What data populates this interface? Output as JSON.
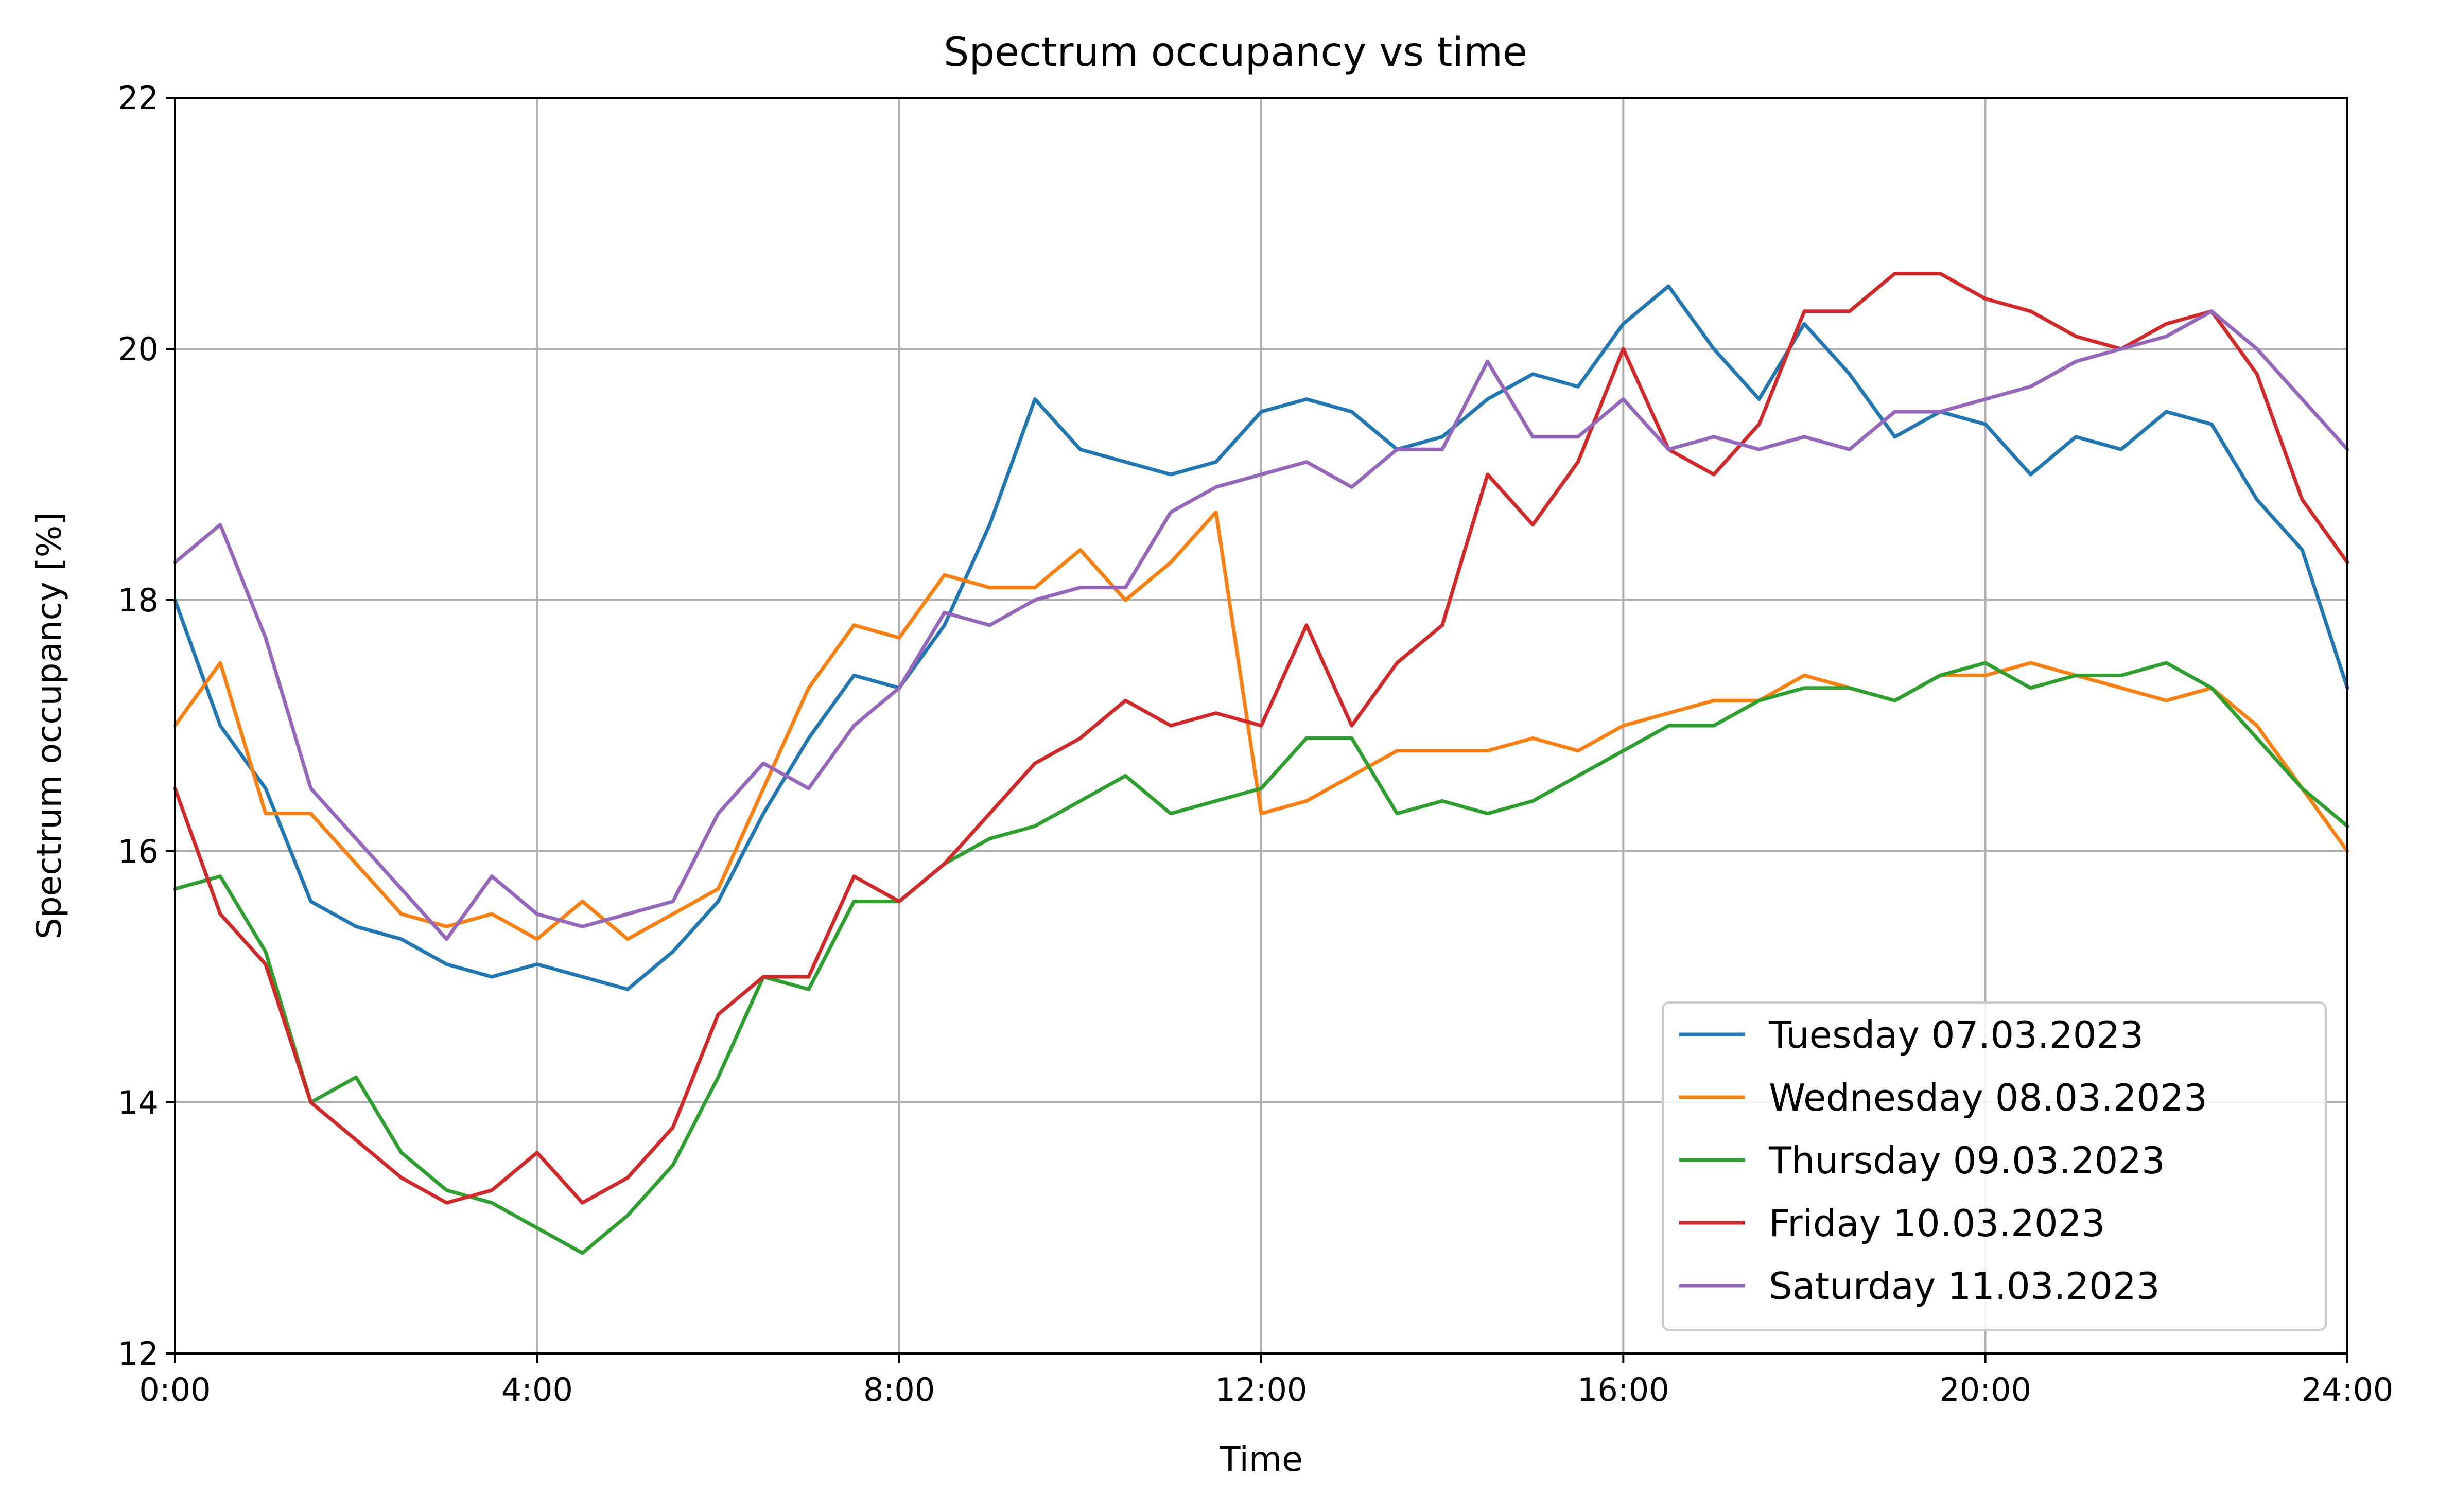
{
  "chart_data": {
    "type": "line",
    "title": "Spectrum occupancy vs time",
    "xlabel": "Time",
    "ylabel": "Spectrum occupancy [%]",
    "xlim": [
      0,
      24
    ],
    "ylim": [
      12,
      22
    ],
    "xticks": [
      {
        "value": 0,
        "label": "0:00"
      },
      {
        "value": 4,
        "label": "4:00"
      },
      {
        "value": 8,
        "label": "8:00"
      },
      {
        "value": 12,
        "label": "12:00"
      },
      {
        "value": 16,
        "label": "16:00"
      },
      {
        "value": 20,
        "label": "20:00"
      },
      {
        "value": 24,
        "label": "24:00"
      }
    ],
    "yticks": [
      {
        "value": 12,
        "label": "12"
      },
      {
        "value": 14,
        "label": "14"
      },
      {
        "value": 16,
        "label": "16"
      },
      {
        "value": 18,
        "label": "18"
      },
      {
        "value": 20,
        "label": "20"
      },
      {
        "value": 22,
        "label": "22"
      }
    ],
    "grid": true,
    "legend_position": "lower-right",
    "x_unit": "hours",
    "series": [
      {
        "name": "Tuesday 07.03.2023",
        "color": "#1f77b4",
        "x": [
          0,
          0.5,
          1,
          1.5,
          2,
          2.5,
          3,
          3.5,
          4,
          4.5,
          5,
          5.5,
          6,
          6.5,
          7,
          7.5,
          8,
          8.5,
          9,
          9.5,
          10,
          10.5,
          11,
          11.5,
          12,
          12.5,
          13,
          13.5,
          14,
          14.5,
          15,
          15.5,
          16,
          16.5,
          17,
          17.5,
          18,
          18.5,
          19,
          19.5,
          20,
          20.5,
          21,
          21.5,
          22,
          22.5,
          23,
          23.5,
          24
        ],
        "values": [
          18.0,
          17.0,
          16.5,
          15.6,
          15.4,
          15.3,
          15.1,
          15.0,
          15.1,
          15.0,
          14.9,
          15.2,
          15.6,
          16.3,
          16.9,
          17.4,
          17.3,
          17.8,
          18.6,
          19.6,
          19.2,
          19.1,
          19.0,
          19.1,
          19.5,
          19.6,
          19.5,
          19.2,
          19.3,
          19.6,
          19.8,
          19.7,
          20.2,
          20.5,
          20.0,
          19.6,
          20.2,
          19.8,
          19.3,
          19.5,
          19.4,
          19.0,
          19.3,
          19.2,
          19.5,
          19.4,
          18.8,
          18.4,
          17.3
        ]
      },
      {
        "name": "Wednesday 08.03.2023",
        "color": "#ff7f0e",
        "x": [
          0,
          0.5,
          1,
          1.5,
          2,
          2.5,
          3,
          3.5,
          4,
          4.5,
          5,
          5.5,
          6,
          6.5,
          7,
          7.5,
          8,
          8.5,
          9,
          9.5,
          10,
          10.5,
          11,
          11.5,
          12,
          12.5,
          13,
          13.5,
          14,
          14.5,
          15,
          15.5,
          16,
          16.5,
          17,
          17.5,
          18,
          18.5,
          19,
          19.5,
          20,
          20.5,
          21,
          21.5,
          22,
          22.5,
          23,
          23.5,
          24
        ],
        "values": [
          17.0,
          17.5,
          16.3,
          16.3,
          15.9,
          15.5,
          15.4,
          15.5,
          15.3,
          15.6,
          15.3,
          15.5,
          15.7,
          16.5,
          17.3,
          17.8,
          17.7,
          18.2,
          18.1,
          18.1,
          18.4,
          18.0,
          18.3,
          18.7,
          16.3,
          16.4,
          16.6,
          16.8,
          16.8,
          16.8,
          16.9,
          16.8,
          17.0,
          17.1,
          17.2,
          17.2,
          17.4,
          17.3,
          17.2,
          17.4,
          17.4,
          17.5,
          17.4,
          17.3,
          17.2,
          17.3,
          17.0,
          16.5,
          16.0
        ]
      },
      {
        "name": "Thursday 09.03.2023",
        "color": "#2ca02c",
        "x": [
          0,
          0.5,
          1,
          1.5,
          2,
          2.5,
          3,
          3.5,
          4,
          4.5,
          5,
          5.5,
          6,
          6.5,
          7,
          7.5,
          8,
          8.5,
          9,
          9.5,
          10,
          10.5,
          11,
          11.5,
          12,
          12.5,
          13,
          13.5,
          14,
          14.5,
          15,
          15.5,
          16,
          16.5,
          17,
          17.5,
          18,
          18.5,
          19,
          19.5,
          20,
          20.5,
          21,
          21.5,
          22,
          22.5,
          23,
          23.5,
          24
        ],
        "values": [
          15.7,
          15.8,
          15.2,
          14.0,
          14.2,
          13.6,
          13.3,
          13.2,
          13.0,
          12.8,
          13.1,
          13.5,
          14.2,
          15.0,
          14.9,
          15.6,
          15.6,
          15.9,
          16.1,
          16.2,
          16.4,
          16.6,
          16.3,
          16.4,
          16.5,
          16.9,
          16.9,
          16.3,
          16.4,
          16.3,
          16.4,
          16.6,
          16.8,
          17.0,
          17.0,
          17.2,
          17.3,
          17.3,
          17.2,
          17.4,
          17.5,
          17.3,
          17.4,
          17.4,
          17.5,
          17.3,
          16.9,
          16.5,
          16.2
        ]
      },
      {
        "name": "Friday 10.03.2023",
        "color": "#d62728",
        "x": [
          0,
          0.5,
          1,
          1.5,
          2,
          2.5,
          3,
          3.5,
          4,
          4.5,
          5,
          5.5,
          6,
          6.5,
          7,
          7.5,
          8,
          8.5,
          9,
          9.5,
          10,
          10.5,
          11,
          11.5,
          12,
          12.5,
          13,
          13.5,
          14,
          14.5,
          15,
          15.5,
          16,
          16.5,
          17,
          17.5,
          18,
          18.5,
          19,
          19.5,
          20,
          20.5,
          21,
          21.5,
          22,
          22.5,
          23,
          23.5,
          24
        ],
        "values": [
          16.5,
          15.5,
          15.1,
          14.0,
          13.7,
          13.4,
          13.2,
          13.3,
          13.6,
          13.2,
          13.4,
          13.8,
          14.7,
          15.0,
          15.0,
          15.8,
          15.6,
          15.9,
          16.3,
          16.7,
          16.9,
          17.2,
          17.0,
          17.1,
          17.0,
          17.8,
          17.0,
          17.5,
          17.8,
          19.0,
          18.6,
          19.1,
          20.0,
          19.2,
          19.0,
          19.4,
          20.3,
          20.3,
          20.6,
          20.6,
          20.4,
          20.3,
          20.1,
          20.0,
          20.2,
          20.3,
          19.8,
          18.8,
          18.3
        ]
      },
      {
        "name": "Saturday 11.03.2023",
        "color": "#9467bd",
        "x": [
          0,
          0.5,
          1,
          1.5,
          2,
          2.5,
          3,
          3.5,
          4,
          4.5,
          5,
          5.5,
          6,
          6.5,
          7,
          7.5,
          8,
          8.5,
          9,
          9.5,
          10,
          10.5,
          11,
          11.5,
          12,
          12.5,
          13,
          13.5,
          14,
          14.5,
          15,
          15.5,
          16,
          16.5,
          17,
          17.5,
          18,
          18.5,
          19,
          19.5,
          20,
          20.5,
          21,
          21.5,
          22,
          22.5,
          23,
          23.5,
          24
        ],
        "values": [
          18.3,
          18.6,
          17.7,
          16.5,
          16.1,
          15.7,
          15.3,
          15.8,
          15.5,
          15.4,
          15.5,
          15.6,
          16.3,
          16.7,
          16.5,
          17.0,
          17.3,
          17.9,
          17.8,
          18.0,
          18.1,
          18.1,
          18.7,
          18.9,
          19.0,
          19.1,
          18.9,
          19.2,
          19.2,
          19.9,
          19.3,
          19.3,
          19.6,
          19.2,
          19.3,
          19.2,
          19.3,
          19.2,
          19.5,
          19.5,
          19.6,
          19.7,
          19.9,
          20.0,
          20.1,
          20.3,
          20.0,
          19.6,
          19.2
        ]
      }
    ]
  }
}
